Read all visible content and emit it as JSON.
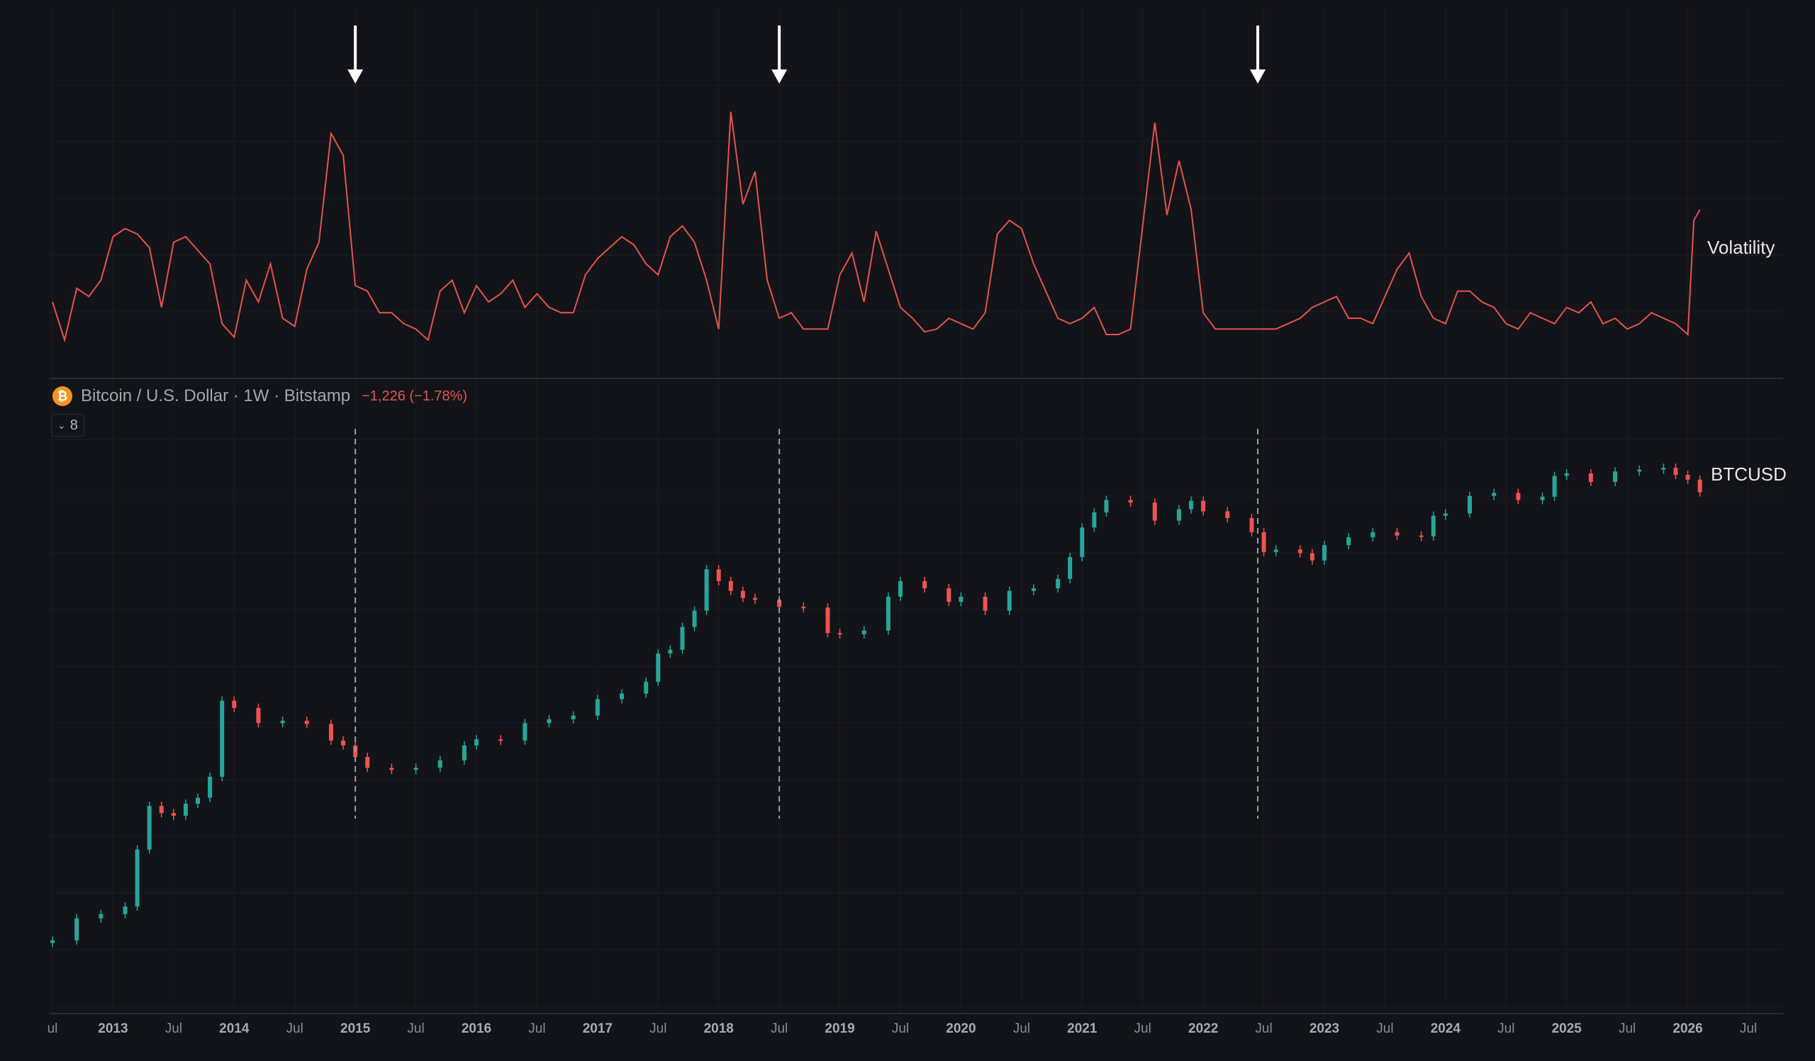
{
  "legend": {
    "coin_symbol": "₿",
    "title": "Bitcoin / U.S. Dollar · 1W · Bitstamp",
    "change": "−1,226 (−1.78%)",
    "collapse_count": "8"
  },
  "labels": {
    "volatility": "Volatility",
    "price": "BTCUSD"
  },
  "colors": {
    "background": "#131419",
    "volatility_line": "#e5534b",
    "up_candle": "#26a69a",
    "down_candle": "#ef5350",
    "arrow": "#ffffff",
    "dashed_marker": "#9aa0aa"
  },
  "chart_data": [
    {
      "type": "line",
      "series": [
        {
          "name": "Volatility",
          "x": [
            2012.5,
            2012.6,
            2012.7,
            2012.8,
            2012.9,
            2013.0,
            2013.1,
            2013.2,
            2013.3,
            2013.4,
            2013.5,
            2013.6,
            2013.7,
            2013.8,
            2013.9,
            2014.0,
            2014.1,
            2014.2,
            2014.3,
            2014.4,
            2014.5,
            2014.6,
            2014.7,
            2014.8,
            2014.9,
            2015.0,
            2015.1,
            2015.2,
            2015.3,
            2015.4,
            2015.5,
            2015.6,
            2015.7,
            2015.8,
            2015.9,
            2016.0,
            2016.1,
            2016.2,
            2016.3,
            2016.4,
            2016.5,
            2016.6,
            2016.7,
            2016.8,
            2016.9,
            2017.0,
            2017.1,
            2017.2,
            2017.3,
            2017.4,
            2017.5,
            2017.6,
            2017.7,
            2017.8,
            2017.9,
            2018.0,
            2018.1,
            2018.2,
            2018.3,
            2018.4,
            2018.5,
            2018.6,
            2018.7,
            2018.8,
            2018.9,
            2019.0,
            2019.1,
            2019.2,
            2019.3,
            2019.4,
            2019.5,
            2019.6,
            2019.7,
            2019.8,
            2019.9,
            2020.0,
            2020.1,
            2020.2,
            2020.3,
            2020.4,
            2020.5,
            2020.6,
            2020.7,
            2020.8,
            2020.9,
            2021.0,
            2021.1,
            2021.2,
            2021.3,
            2021.4,
            2021.5,
            2021.6,
            2021.7,
            2021.8,
            2021.9,
            2022.0,
            2022.1,
            2022.2,
            2022.3,
            2022.4,
            2022.5,
            2022.6,
            2022.7,
            2022.8,
            2022.9,
            2023.0,
            2023.1,
            2023.2,
            2023.3,
            2023.4,
            2023.5,
            2023.6,
            2023.7,
            2023.8,
            2023.9,
            2024.0,
            2024.1,
            2024.2,
            2024.3,
            2024.4,
            2024.5,
            2024.6,
            2024.7,
            2024.8,
            2024.9,
            2025.0,
            2025.1,
            2025.2,
            2025.3,
            2025.4,
            2025.5,
            2025.6,
            2025.7,
            2025.8,
            2025.9,
            2026.0,
            2026.05,
            2026.1
          ],
          "values": [
            28,
            14,
            33,
            30,
            36,
            52,
            55,
            53,
            48,
            26,
            50,
            52,
            47,
            42,
            20,
            15,
            36,
            28,
            42,
            22,
            19,
            40,
            50,
            90,
            82,
            34,
            32,
            24,
            24,
            20,
            18,
            14,
            32,
            36,
            24,
            34,
            28,
            31,
            36,
            26,
            31,
            26,
            24,
            24,
            38,
            44,
            48,
            52,
            49,
            42,
            38,
            52,
            56,
            50,
            36,
            18,
            98,
            64,
            76,
            36,
            22,
            24,
            18,
            18,
            18,
            38,
            46,
            28,
            54,
            40,
            26,
            22,
            17,
            18,
            22,
            20,
            18,
            24,
            53,
            58,
            55,
            42,
            32,
            22,
            20,
            22,
            26,
            16,
            16,
            18,
            56,
            94,
            60,
            80,
            62,
            24,
            18,
            18,
            18,
            18,
            18,
            18,
            20,
            22,
            26,
            28,
            30,
            22,
            22,
            20,
            30,
            40,
            46,
            30,
            22,
            20,
            32,
            32,
            28,
            26,
            20,
            18,
            24,
            22,
            20,
            26,
            24,
            28,
            20,
            22,
            18,
            20,
            24,
            22,
            20,
            16,
            58,
            62
          ],
          "ylim": [
            10,
            100
          ]
        }
      ],
      "annotations": [
        {
          "type": "arrow",
          "x": 2015.0
        },
        {
          "type": "arrow",
          "x": 2018.5
        },
        {
          "type": "arrow",
          "x": 2022.45
        }
      ]
    },
    {
      "type": "candlestick",
      "series": [
        {
          "name": "BTCUSD",
          "x": [
            2012.5,
            2012.7,
            2012.9,
            2013.1,
            2013.2,
            2013.3,
            2013.4,
            2013.5,
            2013.6,
            2013.7,
            2013.8,
            2013.9,
            2014.0,
            2014.2,
            2014.4,
            2014.6,
            2014.8,
            2014.9,
            2015.0,
            2015.1,
            2015.3,
            2015.5,
            2015.7,
            2015.9,
            2016.0,
            2016.2,
            2016.4,
            2016.6,
            2016.8,
            2017.0,
            2017.2,
            2017.4,
            2017.5,
            2017.6,
            2017.7,
            2017.8,
            2017.9,
            2018.0,
            2018.1,
            2018.2,
            2018.3,
            2018.5,
            2018.7,
            2018.9,
            2019.0,
            2019.2,
            2019.4,
            2019.5,
            2019.7,
            2019.9,
            2020.0,
            2020.2,
            2020.4,
            2020.6,
            2020.8,
            2020.9,
            2021.0,
            2021.1,
            2021.2,
            2021.4,
            2021.6,
            2021.8,
            2021.9,
            2022.0,
            2022.2,
            2022.4,
            2022.5,
            2022.6,
            2022.8,
            2022.9,
            2023.0,
            2023.2,
            2023.4,
            2023.6,
            2023.8,
            2023.9,
            2024.0,
            2024.2,
            2024.4,
            2024.6,
            2024.8,
            2024.9,
            2025.0,
            2025.2,
            2025.4,
            2025.6,
            2025.8,
            2025.9,
            2026.0,
            2026.1
          ],
          "values": [
            7,
            11,
            12,
            14,
            45,
            110,
            95,
            90,
            115,
            130,
            200,
            950,
            820,
            600,
            630,
            590,
            420,
            380,
            300,
            240,
            230,
            240,
            280,
            380,
            430,
            420,
            600,
            650,
            700,
            980,
            1100,
            1400,
            2500,
            2700,
            4300,
            6000,
            14000,
            11000,
            9000,
            7800,
            7500,
            6500,
            6400,
            3800,
            3700,
            4000,
            8000,
            11000,
            9500,
            7200,
            8000,
            6000,
            9000,
            9500,
            11500,
            18000,
            33000,
            45000,
            58000,
            55000,
            38000,
            48000,
            57000,
            46000,
            40000,
            30000,
            20000,
            21000,
            19500,
            16800,
            23000,
            27000,
            30000,
            28000,
            27500,
            42000,
            44000,
            63000,
            67000,
            58000,
            62000,
            95000,
            100000,
            84000,
            104000,
            108000,
            112000,
            97000,
            88000,
            68000
          ],
          "ylim": [
            5,
            150000
          ],
          "scale": "log"
        }
      ],
      "annotations": [
        {
          "type": "dashed_vline",
          "x": 2015.0
        },
        {
          "type": "dashed_vline",
          "x": 2018.5
        },
        {
          "type": "dashed_vline",
          "x": 2022.45
        }
      ]
    }
  ],
  "x_axis": {
    "ticks": [
      {
        "label": "ul",
        "x": 2012.5,
        "kind": "month"
      },
      {
        "label": "2013",
        "x": 2013.0,
        "kind": "year"
      },
      {
        "label": "Jul",
        "x": 2013.5,
        "kind": "month"
      },
      {
        "label": "2014",
        "x": 2014.0,
        "kind": "year"
      },
      {
        "label": "Jul",
        "x": 2014.5,
        "kind": "month"
      },
      {
        "label": "2015",
        "x": 2015.0,
        "kind": "year"
      },
      {
        "label": "Jul",
        "x": 2015.5,
        "kind": "month"
      },
      {
        "label": "2016",
        "x": 2016.0,
        "kind": "year"
      },
      {
        "label": "Jul",
        "x": 2016.5,
        "kind": "month"
      },
      {
        "label": "2017",
        "x": 2017.0,
        "kind": "year"
      },
      {
        "label": "Jul",
        "x": 2017.5,
        "kind": "month"
      },
      {
        "label": "2018",
        "x": 2018.0,
        "kind": "year"
      },
      {
        "label": "Jul",
        "x": 2018.5,
        "kind": "month"
      },
      {
        "label": "2019",
        "x": 2019.0,
        "kind": "year"
      },
      {
        "label": "Jul",
        "x": 2019.5,
        "kind": "month"
      },
      {
        "label": "2020",
        "x": 2020.0,
        "kind": "year"
      },
      {
        "label": "Jul",
        "x": 2020.5,
        "kind": "month"
      },
      {
        "label": "2021",
        "x": 2021.0,
        "kind": "year"
      },
      {
        "label": "Jul",
        "x": 2021.5,
        "kind": "month"
      },
      {
        "label": "2022",
        "x": 2022.0,
        "kind": "year"
      },
      {
        "label": "Jul",
        "x": 2022.5,
        "kind": "month"
      },
      {
        "label": "2023",
        "x": 2023.0,
        "kind": "year"
      },
      {
        "label": "Jul",
        "x": 2023.5,
        "kind": "month"
      },
      {
        "label": "2024",
        "x": 2024.0,
        "kind": "year"
      },
      {
        "label": "Jul",
        "x": 2024.5,
        "kind": "month"
      },
      {
        "label": "2025",
        "x": 2025.0,
        "kind": "year"
      },
      {
        "label": "Jul",
        "x": 2025.5,
        "kind": "month"
      },
      {
        "label": "2026",
        "x": 2026.0,
        "kind": "year"
      },
      {
        "label": "Jul",
        "x": 2026.5,
        "kind": "month"
      }
    ]
  }
}
